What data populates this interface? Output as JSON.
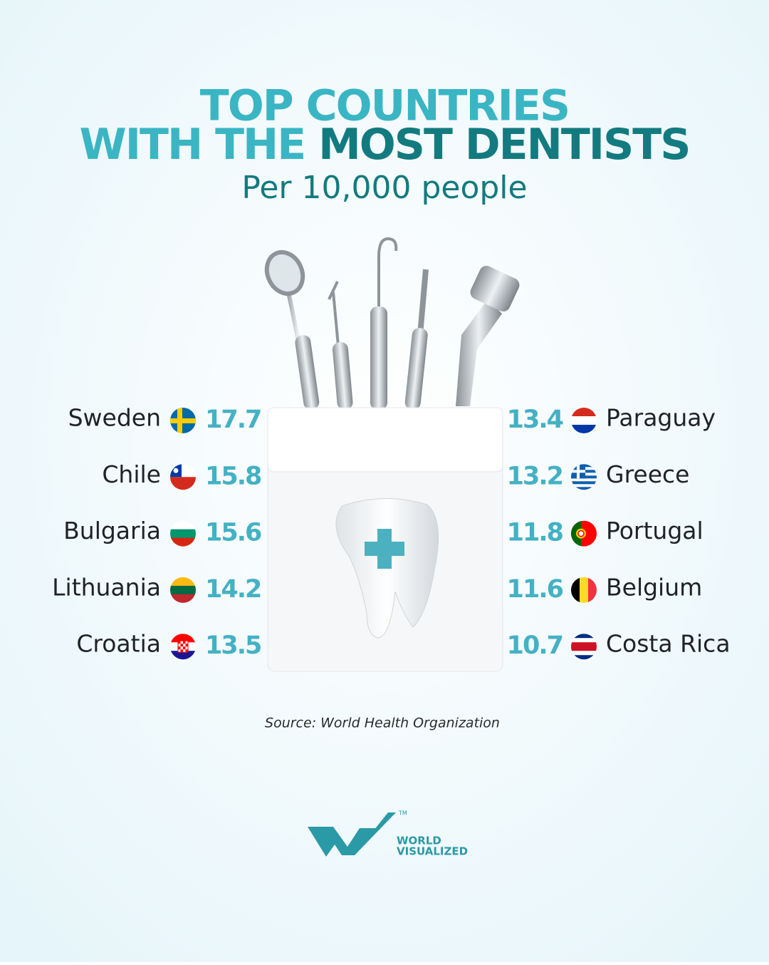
{
  "header": {
    "title_line1": "TOP COUNTRIES",
    "title_line2_part1": "WITH THE",
    "title_line2_part2": "MOST DENTISTS",
    "subtitle": "Per 10,000 people"
  },
  "left": [
    {
      "country": "Sweden",
      "value": 17.7
    },
    {
      "country": "Chile",
      "value": 15.8
    },
    {
      "country": "Bulgaria",
      "value": 15.6
    },
    {
      "country": "Lithuania",
      "value": 14.2
    },
    {
      "country": "Croatia",
      "value": 13.5
    }
  ],
  "right": [
    {
      "country": "Paraguay",
      "value": 13.4
    },
    {
      "country": "Greece",
      "value": 13.2
    },
    {
      "country": "Portugal",
      "value": 11.8
    },
    {
      "country": "Belgium",
      "value": 11.6
    },
    {
      "country": "Costa Rica",
      "value": 10.7
    }
  ],
  "source": "Source: World Health Organization",
  "logo": {
    "line1": "WORLD",
    "line2": "VISUALIZED",
    "mark": "TM"
  }
}
